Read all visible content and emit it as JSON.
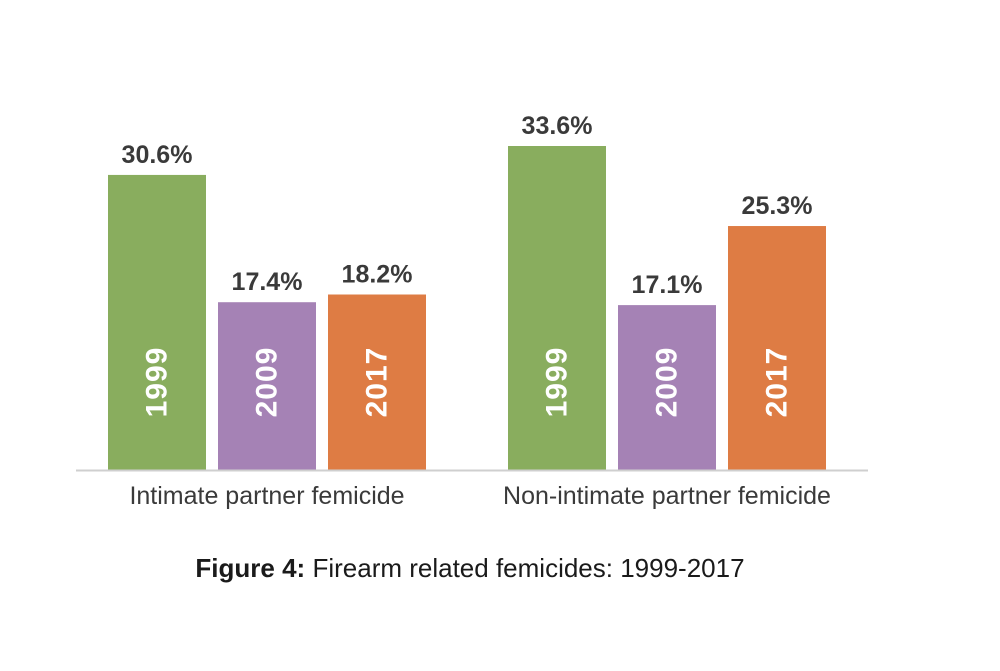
{
  "caption": {
    "prefix": "Figure 4:",
    "text": "Firearm related femicides: 1999-2017"
  },
  "colors": {
    "1999": "#89ad5e",
    "2009": "#a582b5",
    "2017": "#de7c44",
    "axis": "#cfcfcf",
    "label": "#3a3a3a"
  },
  "chart_data": {
    "type": "bar",
    "title": "",
    "xlabel": "",
    "ylabel": "",
    "ylim": [
      0,
      33.6
    ],
    "grid": false,
    "legend": "none",
    "categories": [
      "Intimate partner femicide",
      "Non-intimate partner femicide"
    ],
    "series": [
      {
        "name": "1999",
        "values": [
          30.6,
          33.6
        ],
        "labels": [
          "30.6%",
          "33.6%"
        ]
      },
      {
        "name": "2009",
        "values": [
          17.4,
          17.1
        ],
        "labels": [
          "17.4%",
          "17.1%"
        ]
      },
      {
        "name": "2017",
        "values": [
          18.2,
          25.3
        ],
        "labels": [
          "18.2%",
          "25.3%"
        ]
      }
    ]
  }
}
